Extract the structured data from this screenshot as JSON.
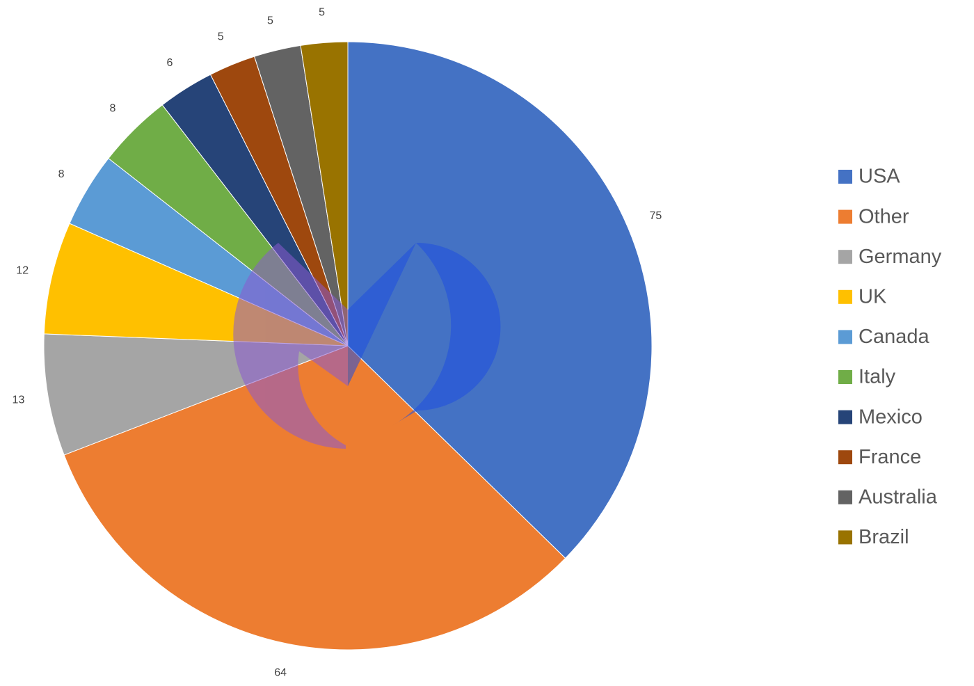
{
  "chart_data": {
    "type": "pie",
    "categories": [
      "USA",
      "Other",
      "Germany",
      "UK",
      "Canada",
      "Italy",
      "Mexico",
      "France",
      "Australia",
      "Brazil"
    ],
    "values": [
      75,
      64,
      13,
      12,
      8,
      8,
      6,
      5,
      5,
      5
    ],
    "colors": [
      "#4472c4",
      "#ed7d31",
      "#a5a5a5",
      "#ffc000",
      "#5b9bd5",
      "#70ad47",
      "#264478",
      "#9e480e",
      "#636363",
      "#997300"
    ],
    "legend": "right"
  }
}
